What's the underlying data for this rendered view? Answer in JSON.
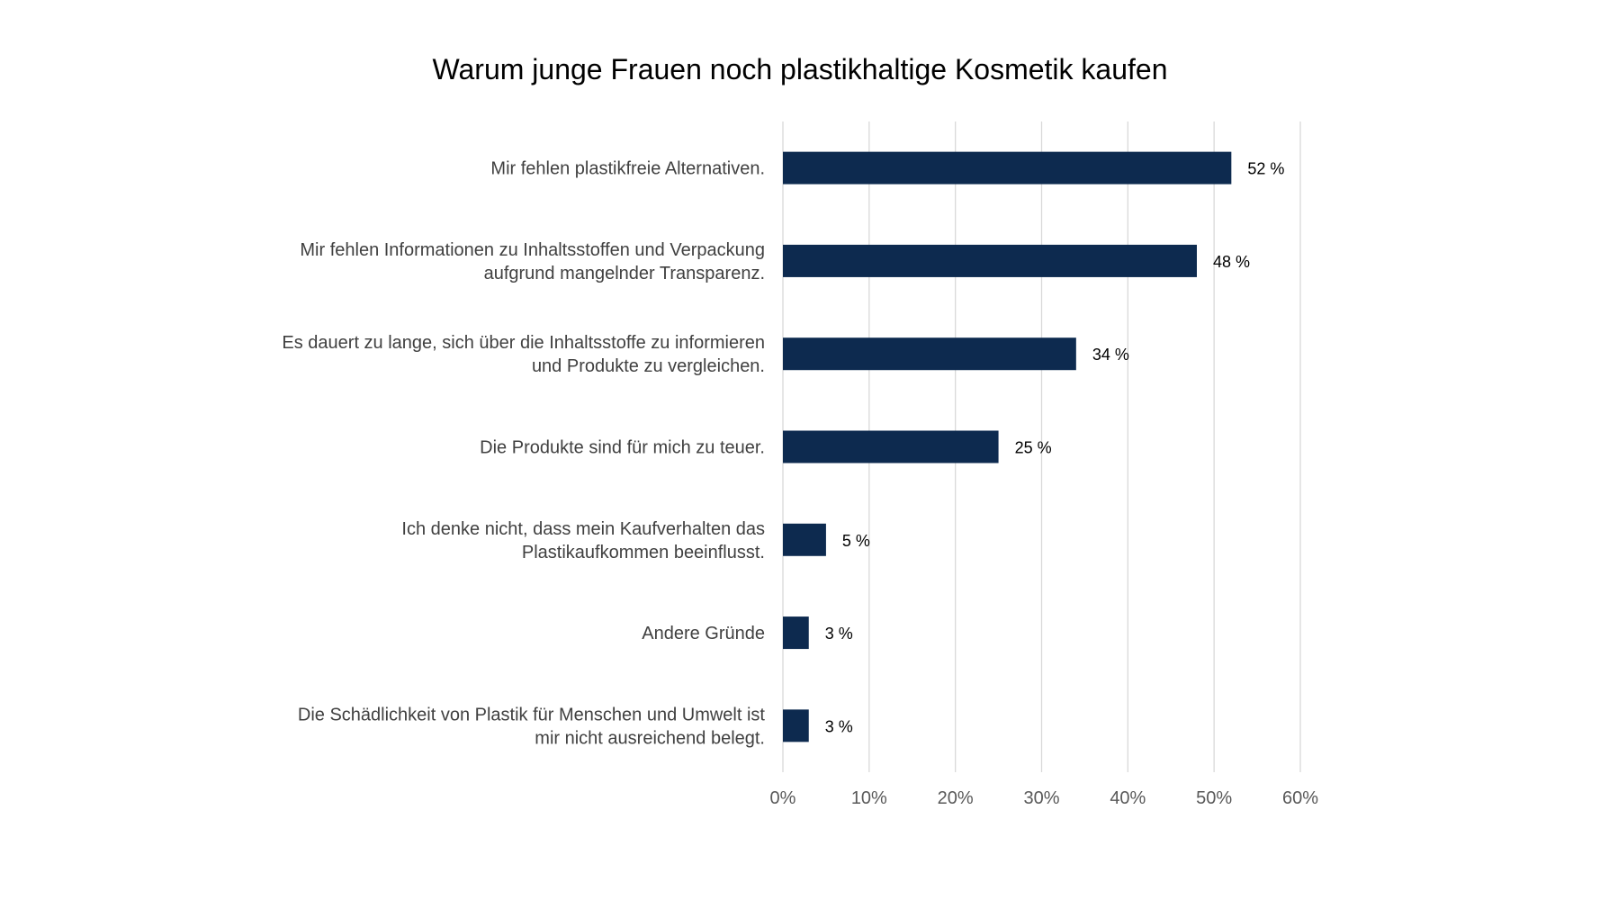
{
  "chart_data": {
    "type": "bar",
    "orientation": "horizontal",
    "title": "Warum junge Frauen noch plastikhaltige Kosmetik kaufen",
    "xlabel": "",
    "ylabel": "",
    "categories": [
      [
        "Mir fehlen plastikfreie Alternativen."
      ],
      [
        "Mir fehlen Informationen zu Inhaltsstoffen und Verpackung",
        "aufgrund mangelnder Transparenz."
      ],
      [
        "Es dauert zu lange, sich über die Inhaltsstoffe zu informieren",
        "und Produkte zu vergleichen."
      ],
      [
        "Die Produkte sind für mich zu teuer."
      ],
      [
        "Ich denke nicht, dass mein Kaufverhalten das",
        "Plastikaufkommen beeinflusst."
      ],
      [
        "Andere Gründe"
      ],
      [
        "Die Schädlichkeit von Plastik für Menschen und Umwelt ist",
        "mir nicht ausreichend belegt."
      ]
    ],
    "values": [
      52,
      48,
      34,
      25,
      5,
      3,
      3
    ],
    "data_labels": [
      "52 %",
      "48 %",
      "34 %",
      "25 %",
      "5 %",
      "3 %",
      "3 %"
    ],
    "xlim": [
      0,
      60
    ],
    "ticks": [
      0,
      10,
      20,
      30,
      40,
      50,
      60
    ],
    "tick_labels": [
      "0%",
      "10%",
      "20%",
      "30%",
      "40%",
      "50%",
      "60%"
    ],
    "grid": true,
    "legend": "none",
    "bar_color": "#0d2a4f"
  }
}
